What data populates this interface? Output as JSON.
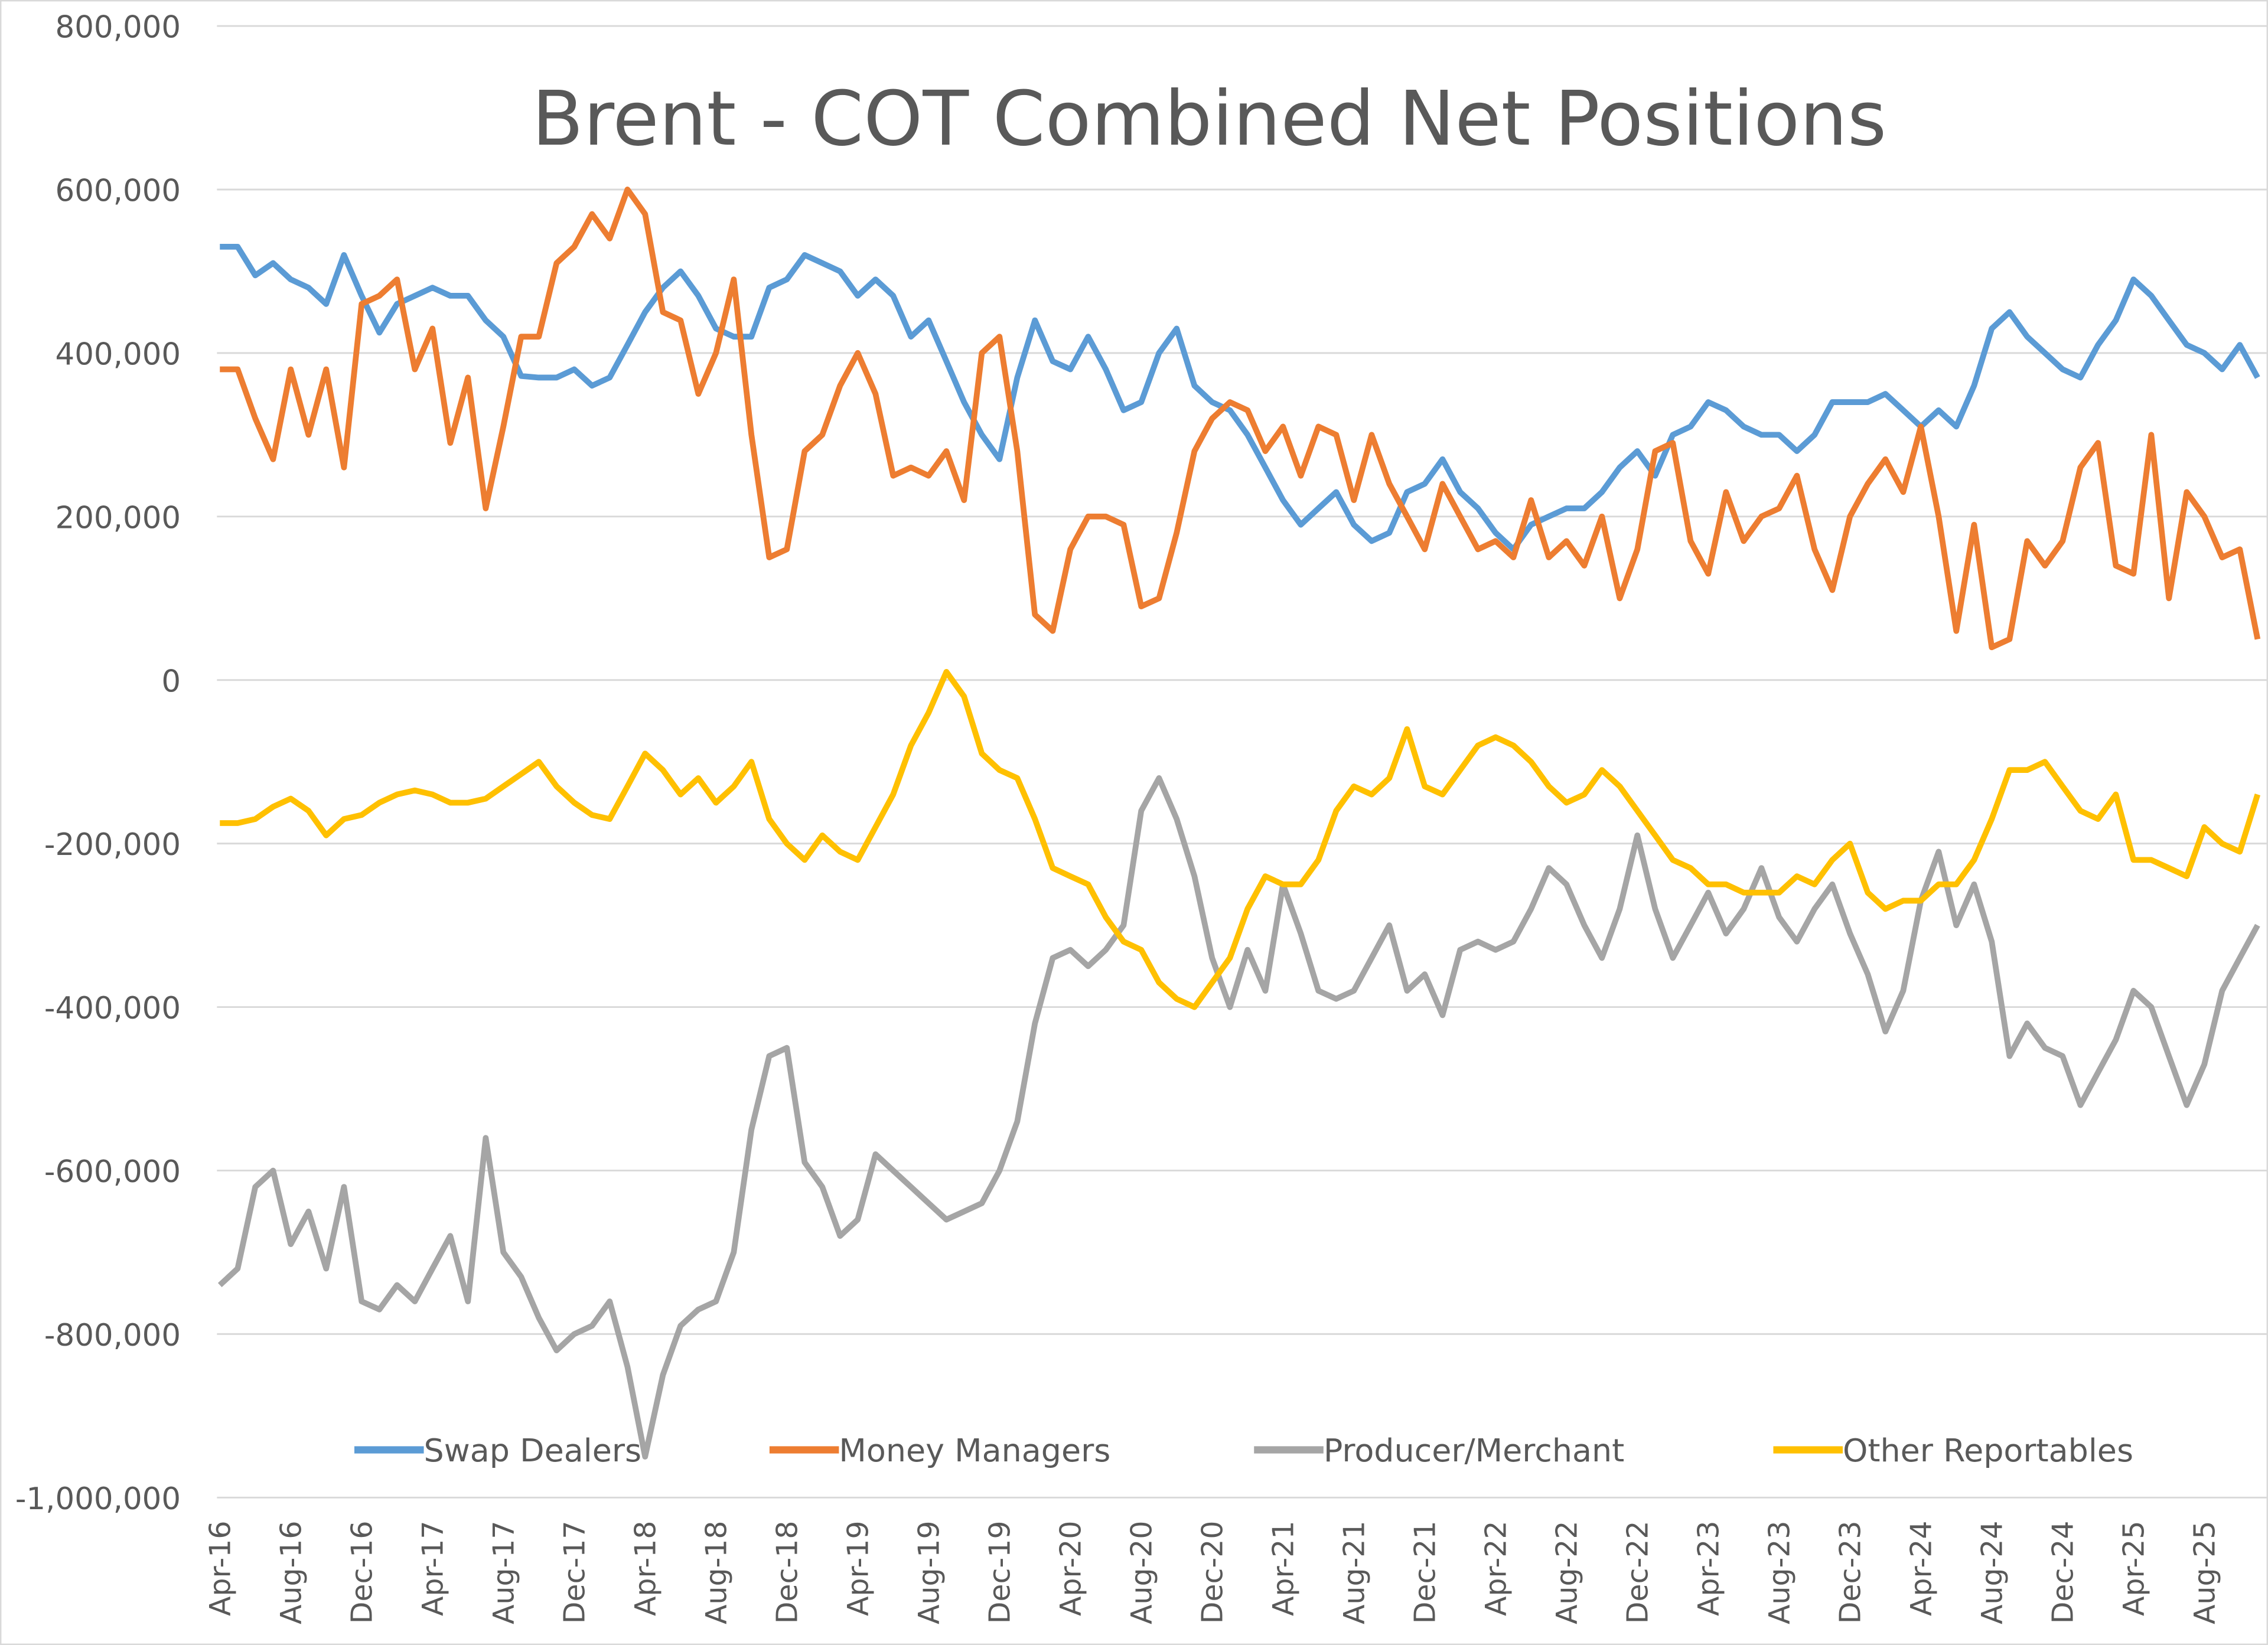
{
  "chart_data": {
    "type": "line",
    "title": "Brent - COT Combined Net Positions",
    "xlabel": "",
    "ylabel": "",
    "ylim": [
      -1000000,
      800000
    ],
    "yticks": [
      800000,
      600000,
      400000,
      200000,
      0,
      -200000,
      -400000,
      -600000,
      -800000,
      -1000000
    ],
    "ytick_labels": [
      "800,000",
      "600,000",
      "400,000",
      "200,000",
      "0",
      "-200,000",
      "-400,000",
      "-600,000",
      "-800,000",
      "-1,000,000"
    ],
    "xtick_labels": [
      "Apr-16",
      "Aug-16",
      "Dec-16",
      "Apr-17",
      "Aug-17",
      "Dec-17",
      "Apr-18",
      "Aug-18",
      "Dec-18",
      "Apr-19",
      "Aug-19",
      "Dec-19",
      "Apr-20",
      "Aug-20",
      "Dec-20",
      "Apr-21",
      "Aug-21",
      "Dec-21",
      "Apr-22",
      "Aug-22",
      "Dec-22",
      "Apr-23",
      "Aug-23",
      "Dec-23",
      "Apr-24",
      "Aug-24",
      "Dec-24",
      "Apr-25",
      "Aug-25"
    ],
    "grid": true,
    "legend_position": "bottom",
    "x": [
      "2016-04",
      "2016-05",
      "2016-06",
      "2016-07",
      "2016-08",
      "2016-09",
      "2016-10",
      "2016-11",
      "2016-12",
      "2017-01",
      "2017-02",
      "2017-03",
      "2017-04",
      "2017-05",
      "2017-06",
      "2017-07",
      "2017-08",
      "2017-09",
      "2017-10",
      "2017-11",
      "2017-12",
      "2018-01",
      "2018-02",
      "2018-03",
      "2018-04",
      "2018-05",
      "2018-06",
      "2018-07",
      "2018-08",
      "2018-09",
      "2018-10",
      "2018-11",
      "2018-12",
      "2019-01",
      "2019-02",
      "2019-03",
      "2019-04",
      "2019-05",
      "2019-06",
      "2019-07",
      "2019-08",
      "2019-09",
      "2019-10",
      "2019-11",
      "2019-12",
      "2020-01",
      "2020-02",
      "2020-03",
      "2020-04",
      "2020-05",
      "2020-06",
      "2020-07",
      "2020-08",
      "2020-09",
      "2020-10",
      "2020-11",
      "2020-12",
      "2021-01",
      "2021-02",
      "2021-03",
      "2021-04",
      "2021-05",
      "2021-06",
      "2021-07",
      "2021-08",
      "2021-09",
      "2021-10",
      "2021-11",
      "2021-12",
      "2022-01",
      "2022-02",
      "2022-03",
      "2022-04",
      "2022-05",
      "2022-06",
      "2022-07",
      "2022-08",
      "2022-09",
      "2022-10",
      "2022-11",
      "2022-12",
      "2023-01",
      "2023-02",
      "2023-03",
      "2023-04",
      "2023-05",
      "2023-06",
      "2023-07",
      "2023-08",
      "2023-09",
      "2023-10",
      "2023-11",
      "2023-12",
      "2024-01",
      "2024-02",
      "2024-03",
      "2024-04",
      "2024-05",
      "2024-06",
      "2024-07",
      "2024-08",
      "2024-09",
      "2024-10",
      "2024-11",
      "2024-12",
      "2025-01",
      "2025-02",
      "2025-03",
      "2025-04",
      "2025-05",
      "2025-06",
      "2025-07",
      "2025-08",
      "2025-09",
      "2025-10",
      "2025-11"
    ],
    "series": [
      {
        "name": "Swap Dealers",
        "color": "#5B9BD5",
        "values": [
          530000,
          530000,
          495000,
          510000,
          490000,
          480000,
          460000,
          520000,
          470000,
          425000,
          460000,
          470000,
          480000,
          470000,
          470000,
          440000,
          420000,
          372000,
          370000,
          370000,
          380000,
          360000,
          370000,
          410000,
          450000,
          480000,
          500000,
          470000,
          430000,
          420000,
          420000,
          480000,
          490000,
          520000,
          510000,
          500000,
          470000,
          490000,
          470000,
          420000,
          440000,
          390000,
          340000,
          300000,
          270000,
          370000,
          440000,
          390000,
          380000,
          420000,
          380000,
          330000,
          340000,
          400000,
          430000,
          360000,
          340000,
          330000,
          300000,
          260000,
          220000,
          190000,
          210000,
          230000,
          190000,
          170000,
          180000,
          230000,
          240000,
          270000,
          230000,
          210000,
          180000,
          160000,
          190000,
          200000,
          210000,
          210000,
          230000,
          260000,
          280000,
          250000,
          300000,
          310000,
          340000,
          330000,
          310000,
          300000,
          300000,
          280000,
          300000,
          340000,
          340000,
          340000,
          350000,
          330000,
          310000,
          330000,
          310000,
          360000,
          430000,
          450000,
          420000,
          400000,
          380000,
          370000,
          410000,
          440000,
          490000,
          470000,
          440000,
          410000,
          400000,
          380000,
          410000,
          370000
        ]
      },
      {
        "name": "Money Managers",
        "color": "#ED7D31",
        "values": [
          380000,
          380000,
          320000,
          270000,
          380000,
          300000,
          380000,
          260000,
          460000,
          470000,
          490000,
          380000,
          430000,
          290000,
          370000,
          210000,
          310000,
          420000,
          420000,
          510000,
          530000,
          570000,
          540000,
          600000,
          570000,
          450000,
          440000,
          350000,
          400000,
          490000,
          300000,
          150000,
          160000,
          280000,
          300000,
          360000,
          400000,
          350000,
          250000,
          260000,
          250000,
          280000,
          220000,
          400000,
          420000,
          280000,
          80000,
          60000,
          160000,
          200000,
          200000,
          190000,
          90000,
          100000,
          180000,
          280000,
          320000,
          340000,
          330000,
          280000,
          310000,
          250000,
          310000,
          300000,
          220000,
          300000,
          240000,
          200000,
          160000,
          240000,
          200000,
          160000,
          170000,
          150000,
          220000,
          150000,
          170000,
          140000,
          200000,
          100000,
          160000,
          280000,
          290000,
          170000,
          130000,
          230000,
          170000,
          200000,
          210000,
          250000,
          160000,
          110000,
          200000,
          240000,
          270000,
          230000,
          310000,
          200000,
          60000,
          190000,
          40000,
          50000,
          170000,
          140000,
          170000,
          260000,
          290000,
          140000,
          130000,
          300000,
          100000,
          230000,
          200000,
          150000,
          160000,
          50000
        ]
      },
      {
        "name": "Producer/Merchant",
        "color": "#A5A5A5",
        "values": [
          -740000,
          -720000,
          -620000,
          -600000,
          -690000,
          -650000,
          -720000,
          -620000,
          -760000,
          -770000,
          -740000,
          -760000,
          -720000,
          -680000,
          -760000,
          -560000,
          -700000,
          -730000,
          -780000,
          -820000,
          -800000,
          -790000,
          -760000,
          -840000,
          -950000,
          -850000,
          -790000,
          -770000,
          -760000,
          -700000,
          -550000,
          -460000,
          -450000,
          -590000,
          -620000,
          -680000,
          -660000,
          -580000,
          -600000,
          -620000,
          -640000,
          -660000,
          -650000,
          -640000,
          -600000,
          -540000,
          -420000,
          -340000,
          -330000,
          -350000,
          -330000,
          -300000,
          -160000,
          -120000,
          -170000,
          -240000,
          -340000,
          -400000,
          -330000,
          -380000,
          -250000,
          -310000,
          -380000,
          -390000,
          -380000,
          -340000,
          -300000,
          -380000,
          -360000,
          -410000,
          -330000,
          -320000,
          -330000,
          -320000,
          -280000,
          -230000,
          -250000,
          -300000,
          -340000,
          -280000,
          -190000,
          -280000,
          -340000,
          -300000,
          -260000,
          -310000,
          -280000,
          -230000,
          -290000,
          -320000,
          -280000,
          -250000,
          -310000,
          -360000,
          -430000,
          -380000,
          -270000,
          -210000,
          -300000,
          -250000,
          -320000,
          -460000,
          -420000,
          -450000,
          -460000,
          -520000,
          -480000,
          -440000,
          -380000,
          -400000,
          -460000,
          -520000,
          -470000,
          -380000,
          -340000,
          -300000
        ]
      },
      {
        "name": "Other Reportables",
        "color": "#FFC000",
        "values": [
          -175000,
          -175000,
          -170000,
          -155000,
          -145000,
          -160000,
          -190000,
          -170000,
          -165000,
          -150000,
          -140000,
          -135000,
          -140000,
          -150000,
          -150000,
          -145000,
          -130000,
          -115000,
          -100000,
          -130000,
          -150000,
          -165000,
          -170000,
          -130000,
          -90000,
          -110000,
          -140000,
          -120000,
          -150000,
          -130000,
          -100000,
          -170000,
          -200000,
          -220000,
          -190000,
          -210000,
          -220000,
          -180000,
          -140000,
          -80000,
          -40000,
          10000,
          -20000,
          -90000,
          -110000,
          -120000,
          -170000,
          -230000,
          -240000,
          -250000,
          -290000,
          -320000,
          -330000,
          -370000,
          -390000,
          -400000,
          -370000,
          -340000,
          -280000,
          -240000,
          -250000,
          -250000,
          -220000,
          -160000,
          -130000,
          -140000,
          -120000,
          -60000,
          -130000,
          -140000,
          -110000,
          -80000,
          -70000,
          -80000,
          -100000,
          -130000,
          -150000,
          -140000,
          -110000,
          -130000,
          -160000,
          -190000,
          -220000,
          -230000,
          -250000,
          -250000,
          -260000,
          -260000,
          -260000,
          -240000,
          -250000,
          -220000,
          -200000,
          -260000,
          -280000,
          -270000,
          -270000,
          -250000,
          -250000,
          -220000,
          -170000,
          -110000,
          -110000,
          -100000,
          -130000,
          -160000,
          -170000,
          -140000,
          -220000,
          -220000,
          -230000,
          -240000,
          -180000,
          -200000,
          -210000,
          -140000
        ]
      }
    ]
  }
}
